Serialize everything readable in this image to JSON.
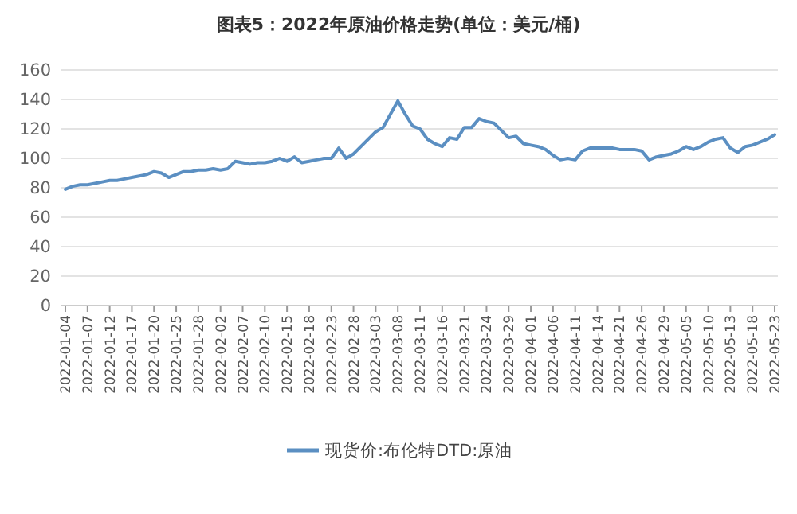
{
  "chart_data": {
    "type": "line",
    "title": "图表5：2022年原油价格走势(单位：美元/桶)",
    "categories": [
      "2022-01-04",
      null,
      null,
      "2022-01-07",
      null,
      null,
      "2022-01-12",
      null,
      null,
      "2022-01-17",
      null,
      null,
      "2022-01-20",
      null,
      null,
      "2022-01-25",
      null,
      null,
      "2022-01-28",
      null,
      null,
      "2022-02-02",
      null,
      null,
      "2022-02-07",
      null,
      null,
      "2022-02-10",
      null,
      null,
      "2022-02-15",
      null,
      null,
      "2022-02-18",
      null,
      null,
      "2022-02-23",
      null,
      null,
      "2022-02-28",
      null,
      null,
      "2022-03-03",
      null,
      null,
      "2022-03-08",
      null,
      null,
      "2022-03-11",
      null,
      null,
      "2022-03-16",
      null,
      null,
      "2022-03-21",
      null,
      null,
      "2022-03-24",
      null,
      null,
      "2022-03-29",
      null,
      null,
      "2022-04-01",
      null,
      null,
      "2022-04-06",
      null,
      null,
      "2022-04-11",
      null,
      null,
      "2022-04-14",
      null,
      null,
      "2022-04-21",
      null,
      null,
      "2022-04-26",
      null,
      null,
      "2022-04-29",
      null,
      null,
      "2022-05-05",
      null,
      null,
      "2022-05-10",
      null,
      null,
      "2022-05-13",
      null,
      null,
      "2022-05-18",
      null,
      null,
      "2022-05-23"
    ],
    "series": [
      {
        "name": "现货价:布伦特DTD:原油",
        "color": "#5b8fc2",
        "values": [
          79,
          81,
          82,
          82,
          83,
          84,
          85,
          85,
          86,
          87,
          88,
          89,
          91,
          90,
          87,
          89,
          91,
          91,
          92,
          92,
          93,
          92,
          93,
          98,
          97,
          96,
          97,
          97,
          98,
          100,
          98,
          101,
          97,
          98,
          99,
          100,
          100,
          107,
          100,
          103,
          108,
          113,
          118,
          121,
          130,
          139,
          130,
          122,
          120,
          113,
          110,
          108,
          114,
          113,
          121,
          121,
          127,
          125,
          124,
          119,
          114,
          115,
          110,
          109,
          108,
          106,
          102,
          99,
          100,
          99,
          105,
          107,
          107,
          107,
          107,
          106,
          106,
          106,
          105,
          99,
          101,
          102,
          103,
          105,
          108,
          106,
          108,
          111,
          113,
          114,
          107,
          104,
          108,
          109,
          111,
          113,
          116
        ]
      }
    ],
    "ylim": [
      0,
      160
    ],
    "yticks": [
      0,
      20,
      40,
      60,
      80,
      100,
      120,
      140,
      160
    ],
    "grid": "y",
    "legend": "bottom",
    "marker": "none",
    "line_style": "solid"
  }
}
